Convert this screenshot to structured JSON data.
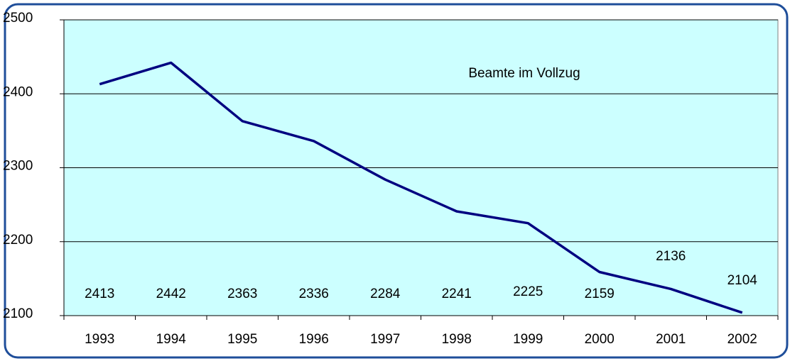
{
  "chart_data": {
    "type": "line",
    "categories": [
      "1993",
      "1994",
      "1995",
      "1996",
      "1997",
      "1998",
      "1999",
      "2000",
      "2001",
      "2002"
    ],
    "series": [
      {
        "name": "Beamte im Vollzug",
        "color": "#000080",
        "values": [
          2413,
          2442,
          2363,
          2336,
          2284,
          2241,
          2225,
          2159,
          2136,
          2104
        ]
      }
    ],
    "ylim": [
      2100,
      2500
    ],
    "yticks": [
      2100,
      2200,
      2300,
      2400,
      2500
    ],
    "grid": true
  }
}
